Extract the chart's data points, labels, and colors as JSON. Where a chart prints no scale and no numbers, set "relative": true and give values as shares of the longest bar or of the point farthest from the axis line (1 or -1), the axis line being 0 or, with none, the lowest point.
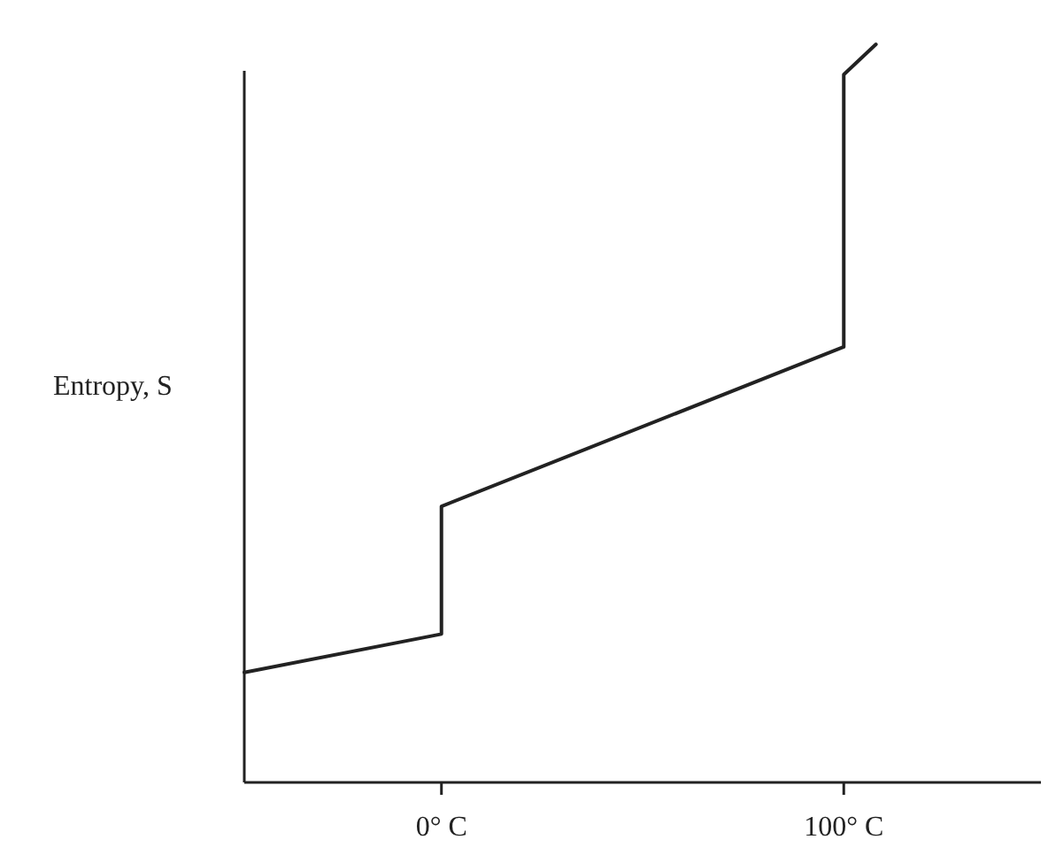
{
  "chart_data": {
    "type": "line",
    "ylabel": "Entropy, S",
    "relative": true,
    "tick_labels": "x",
    "xlim": [
      -49,
      149
    ],
    "xticks": [
      {
        "value": 0,
        "label": "0° C"
      },
      {
        "value": 100,
        "label": "100° C"
      }
    ],
    "series": [
      {
        "color": "#222222",
        "x": [
          -49,
          0,
          0,
          100,
          100,
          108
        ],
        "values": [
          0.149,
          0.201,
          0.374,
          0.59,
          0.959,
          1
        ]
      }
    ],
    "grid": false,
    "marker": "none",
    "line_style": "solid"
  }
}
